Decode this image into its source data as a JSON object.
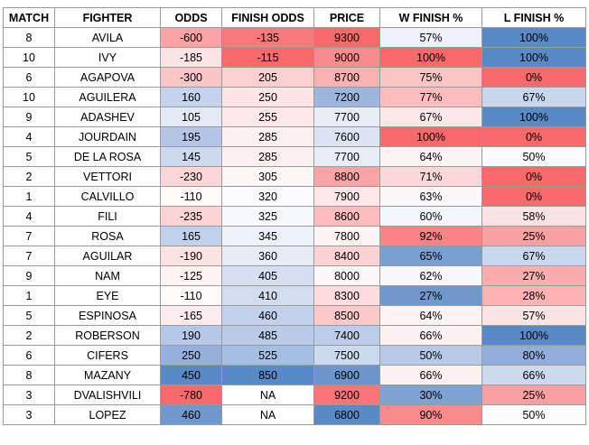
{
  "table": {
    "header": [
      "MATCH",
      "FIGHTER",
      "ODDS",
      "FINISH ODDS",
      "PRICE",
      "W FINISH %",
      "L FINISH %"
    ],
    "rows": [
      [
        "8",
        "AVILA",
        "-600",
        "-135",
        "9300",
        "57%",
        "100%"
      ],
      [
        "10",
        "IVY",
        "-185",
        "-115",
        "9000",
        "100%",
        "100%"
      ],
      [
        "6",
        "AGAPOVA",
        "-300",
        "205",
        "8700",
        "75%",
        "0%"
      ],
      [
        "10",
        "AGUILERA",
        "160",
        "250",
        "7200",
        "77%",
        "67%"
      ],
      [
        "9",
        "ADASHEV",
        "105",
        "255",
        "7700",
        "67%",
        "100%"
      ],
      [
        "4",
        "JOURDAIN",
        "195",
        "285",
        "7600",
        "100%",
        "0%"
      ],
      [
        "5",
        "DE LA ROSA",
        "145",
        "285",
        "7700",
        "64%",
        "50%"
      ],
      [
        "2",
        "VETTORI",
        "-230",
        "305",
        "8800",
        "71%",
        "0%"
      ],
      [
        "1",
        "CALVILLO",
        "-110",
        "320",
        "7900",
        "63%",
        "0%"
      ],
      [
        "4",
        "FILI",
        "-235",
        "325",
        "8600",
        "60%",
        "58%"
      ],
      [
        "7",
        "ROSA",
        "165",
        "345",
        "7800",
        "92%",
        "25%"
      ],
      [
        "7",
        "AGUILAR",
        "-190",
        "360",
        "8400",
        "65%",
        "67%"
      ],
      [
        "9",
        "NAM",
        "-125",
        "405",
        "8000",
        "62%",
        "27%"
      ],
      [
        "1",
        "EYE",
        "-110",
        "410",
        "8300",
        "27%",
        "28%"
      ],
      [
        "5",
        "ESPINOSA",
        "-165",
        "460",
        "8500",
        "64%",
        "57%"
      ],
      [
        "2",
        "ROBERSON",
        "190",
        "485",
        "7400",
        "66%",
        "100%"
      ],
      [
        "6",
        "CIFERS",
        "250",
        "525",
        "7500",
        "50%",
        "80%"
      ],
      [
        "8",
        "MAZANY",
        "450",
        "850",
        "6900",
        "66%",
        "66%"
      ],
      [
        "3",
        "DVALISHVILI",
        "-780",
        "NA",
        "9200",
        "30%",
        "25%"
      ],
      [
        "3",
        "LOPEZ",
        "460",
        "NA",
        "6800",
        "90%",
        "50%"
      ]
    ],
    "fills": [
      [
        "#ffffff",
        "#ffffff",
        "#f9a3a5",
        "#f8797b",
        "#f8696b",
        "#eef1f9",
        "#5a8ac6"
      ],
      [
        "#ffffff",
        "#ffffff",
        "#fce4e5",
        "#f8696b",
        "#f98b8d",
        "#f8696b",
        "#5a8ac6"
      ],
      [
        "#ffffff",
        "#ffffff",
        "#fbc6c7",
        "#fbd0d1",
        "#fbb0b1",
        "#fbc5c6",
        "#f8696b"
      ],
      [
        "#ffffff",
        "#ffffff",
        "#c5d3ec",
        "#fde4e5",
        "#9db6de",
        "#fbbcbd",
        "#c9d6ee"
      ],
      [
        "#ffffff",
        "#ffffff",
        "#e3eaf5",
        "#fde7e8",
        "#e8edf7",
        "#fde8e9",
        "#5a8ac6"
      ],
      [
        "#ffffff",
        "#ffffff",
        "#b3c6e7",
        "#fdf0f1",
        "#dbe4f3",
        "#f8696b",
        "#f8696b"
      ],
      [
        "#ffffff",
        "#ffffff",
        "#ccd9ef",
        "#fdf0f1",
        "#e8edf7",
        "#fdf4f5",
        "#fcfcff"
      ],
      [
        "#ffffff",
        "#ffffff",
        "#fcd6d7",
        "#fdf6f7",
        "#faa4a6",
        "#fcd7d8",
        "#f8696b"
      ],
      [
        "#ffffff",
        "#ffffff",
        "#fefafa",
        "#fcfcff",
        "#fde7e8",
        "#fcf8f9",
        "#f8696b"
      ],
      [
        "#ffffff",
        "#ffffff",
        "#fcd4d5",
        "#f8f9fd",
        "#fbbcbd",
        "#f4f6fb",
        "#fbe2e3"
      ],
      [
        "#ffffff",
        "#ffffff",
        "#c2d1eb",
        "#eef2f9",
        "#fdf4f5",
        "#f98385",
        "#f9a0a2"
      ],
      [
        "#ffffff",
        "#ffffff",
        "#fce2e3",
        "#e6ecf6",
        "#fcd2d3",
        "#7a9fd1",
        "#c9d6ee"
      ],
      [
        "#ffffff",
        "#ffffff",
        "#fef3f4",
        "#d6e0f1",
        "#fdf8f9",
        "#f9f9fd",
        "#fbaeb0"
      ],
      [
        "#ffffff",
        "#ffffff",
        "#fefafa",
        "#d3ddf0",
        "#fcdcdd",
        "#6f98cc",
        "#fbb3b4"
      ],
      [
        "#ffffff",
        "#ffffff",
        "#fdeced",
        "#c2d1eb",
        "#fbc9ca",
        "#fdf4f5",
        "#fde4e5"
      ],
      [
        "#ffffff",
        "#ffffff",
        "#b6c8e8",
        "#b9cbe8",
        "#bccde9",
        "#fdf0f1",
        "#5a8ac6"
      ],
      [
        "#ffffff",
        "#ffffff",
        "#95b0dc",
        "#a7bee3",
        "#ccd9ef",
        "#b8c9e8",
        "#91addc"
      ],
      [
        "#ffffff",
        "#ffffff",
        "#5a8ac6",
        "#5a8ac6",
        "#6c96cb",
        "#fdf0f1",
        "#ccd9ef"
      ],
      [
        "#ffffff",
        "#ffffff",
        "#f8696b",
        "#ffffff",
        "#f97577",
        "#7fa2d2",
        "#f9a0a2"
      ],
      [
        "#ffffff",
        "#ffffff",
        "#6f98cc",
        "#ffffff",
        "#5a8ac6",
        "#f98b8d",
        "#fcfcff"
      ]
    ]
  }
}
